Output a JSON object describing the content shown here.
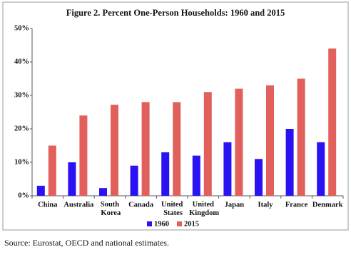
{
  "chart_data": {
    "type": "bar",
    "title": "Figure 2. Percent One-Person Households: 1960 and 2015",
    "categories": [
      "China",
      "Australia",
      "South Korea",
      "Canada",
      "United States",
      "United Kingdom",
      "Japan",
      "Italy",
      "France",
      "Denmark"
    ],
    "series": [
      {
        "name": "1960",
        "color": "#2b12f2",
        "values": [
          3,
          10,
          2.3,
          9,
          13,
          12,
          16,
          11,
          20,
          16
        ]
      },
      {
        "name": "2015",
        "color": "#e2605b",
        "values": [
          15,
          24,
          27.2,
          28,
          28,
          31,
          32,
          33,
          35,
          44
        ]
      }
    ],
    "ylim": [
      0,
      50
    ],
    "yticks": [
      {
        "value": 0,
        "label": "0%"
      },
      {
        "value": 10,
        "label": "10%"
      },
      {
        "value": 20,
        "label": "20%"
      },
      {
        "value": 30,
        "label": "30%"
      },
      {
        "value": 40,
        "label": "40%"
      },
      {
        "value": 50,
        "label": "50%"
      }
    ],
    "legend": "bottom",
    "source": "Source: Eurostat, OECD and national estimates."
  }
}
